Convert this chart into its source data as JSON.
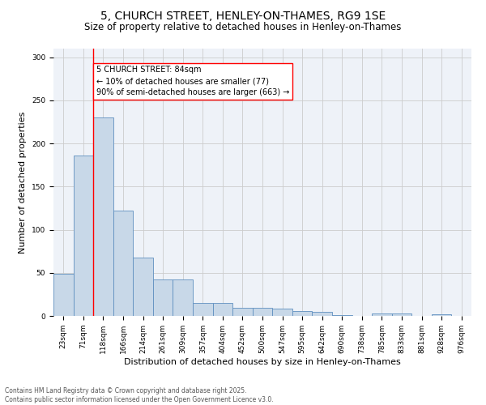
{
  "title1": "5, CHURCH STREET, HENLEY-ON-THAMES, RG9 1SE",
  "title2": "Size of property relative to detached houses in Henley-on-Thames",
  "xlabel": "Distribution of detached houses by size in Henley-on-Thames",
  "ylabel": "Number of detached properties",
  "categories": [
    "23sqm",
    "71sqm",
    "118sqm",
    "166sqm",
    "214sqm",
    "261sqm",
    "309sqm",
    "357sqm",
    "404sqm",
    "452sqm",
    "500sqm",
    "547sqm",
    "595sqm",
    "642sqm",
    "690sqm",
    "738sqm",
    "785sqm",
    "833sqm",
    "881sqm",
    "928sqm",
    "976sqm"
  ],
  "values": [
    49,
    186,
    230,
    122,
    68,
    42,
    42,
    15,
    15,
    9,
    9,
    8,
    6,
    5,
    1,
    0,
    3,
    3,
    0,
    2,
    0
  ],
  "bar_color": "#c8d8e8",
  "bar_edge_color": "#6090c0",
  "red_line_x": 1.5,
  "annotation_text": "5 CHURCH STREET: 84sqm\n← 10% of detached houses are smaller (77)\n90% of semi-detached houses are larger (663) →",
  "annotation_box_color": "white",
  "annotation_box_edge": "red",
  "ylim": [
    0,
    310
  ],
  "yticks": [
    0,
    50,
    100,
    150,
    200,
    250,
    300
  ],
  "grid_color": "#cccccc",
  "background_color": "#eef2f8",
  "footer1": "Contains HM Land Registry data © Crown copyright and database right 2025.",
  "footer2": "Contains public sector information licensed under the Open Government Licence v3.0.",
  "title1_fontsize": 10,
  "title2_fontsize": 8.5,
  "tick_fontsize": 6.5,
  "xlabel_fontsize": 8,
  "ylabel_fontsize": 8,
  "annotation_fontsize": 7,
  "footer_fontsize": 5.5
}
